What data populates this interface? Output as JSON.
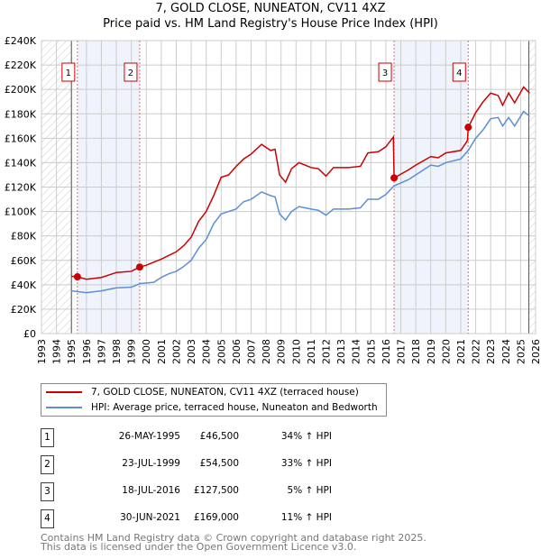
{
  "chart_data": {
    "type": "line",
    "title": "7, GOLD CLOSE, NUNEATON, CV11 4XZ",
    "subtitle": "Price paid vs. HM Land Registry's House Price Index (HPI)",
    "xlim": [
      1993,
      2026
    ],
    "ylim": [
      0,
      240000
    ],
    "x_ticks": [
      "1993",
      "1994",
      "1995",
      "1996",
      "1997",
      "1998",
      "1999",
      "2000",
      "2001",
      "2002",
      "2003",
      "2004",
      "2005",
      "2006",
      "2007",
      "2008",
      "2009",
      "2010",
      "2011",
      "2012",
      "2013",
      "2014",
      "2015",
      "2016",
      "2017",
      "2018",
      "2019",
      "2020",
      "2021",
      "2022",
      "2023",
      "2024",
      "2025",
      "2026"
    ],
    "y_ticks": [
      "£0",
      "£20K",
      "£40K",
      "£60K",
      "£80K",
      "£100K",
      "£120K",
      "£140K",
      "£160K",
      "£180K",
      "£200K",
      "£220K",
      "£240K"
    ],
    "grid": true,
    "series": [
      {
        "name": "7, GOLD CLOSE, NUNEATON, CV11 4XZ (terraced house)",
        "color": "#cc0000",
        "x": [
          1995.0,
          1995.4,
          1996,
          1997,
          1998,
          1999,
          1999.55,
          2000,
          2001,
          2001.5,
          2002,
          2002.5,
          2003,
          2003.5,
          2004,
          2004.5,
          2005,
          2005.5,
          2006,
          2006.5,
          2007,
          2007.7,
          2008.3,
          2008.6,
          2008.9,
          2009.3,
          2009.7,
          2010.2,
          2011,
          2011.5,
          2012,
          2012.5,
          2013.5,
          2014.3,
          2014.8,
          2015.5,
          2016,
          2016.5,
          2016.55,
          2017.5,
          2018,
          2019,
          2019.5,
          2020,
          2021,
          2021.45,
          2021.5,
          2022,
          2022.5,
          2023,
          2023.5,
          2023.8,
          2024.2,
          2024.6,
          2025.2,
          2025.6
        ],
        "y": [
          47000,
          46500,
          44500,
          46000,
          50000,
          51000,
          54500,
          56000,
          61000,
          64000,
          67000,
          72000,
          79000,
          92000,
          100000,
          113000,
          128000,
          130000,
          137000,
          143000,
          147000,
          155000,
          150000,
          151000,
          130000,
          124000,
          135000,
          140000,
          136000,
          135000,
          129000,
          136000,
          136000,
          137000,
          148000,
          149000,
          153000,
          161000,
          127500,
          134000,
          138000,
          145000,
          144000,
          148000,
          150000,
          158000,
          169000,
          181000,
          190000,
          197000,
          195000,
          187000,
          197000,
          189000,
          202000,
          197000
        ]
      },
      {
        "name": "HPI: Average price, terraced house, Nuneaton and Bedworth",
        "color": "#5b8fd6",
        "x": [
          1995.0,
          1996,
          1997,
          1998,
          1999,
          1999.6,
          2000.5,
          2001,
          2001.5,
          2002,
          2002.5,
          2003,
          2003.5,
          2004,
          2004.5,
          2005,
          2005.5,
          2006,
          2006.5,
          2007,
          2007.7,
          2008.3,
          2008.6,
          2008.9,
          2009.3,
          2009.7,
          2010.2,
          2011,
          2011.5,
          2012,
          2012.5,
          2013.5,
          2014.3,
          2014.8,
          2015.5,
          2016,
          2016.55,
          2017.5,
          2018,
          2019,
          2019.5,
          2020,
          2021,
          2021.5,
          2022,
          2022.5,
          2023,
          2023.5,
          2023.8,
          2024.2,
          2024.6,
          2025.2,
          2025.6
        ],
        "y": [
          35000,
          33500,
          35000,
          37500,
          38000,
          41000,
          42000,
          46000,
          49000,
          51000,
          55000,
          60000,
          70000,
          77000,
          90000,
          98000,
          100000,
          102000,
          108000,
          110000,
          116000,
          113000,
          112000,
          98000,
          93000,
          100000,
          104000,
          102000,
          101000,
          97000,
          102000,
          102000,
          103000,
          110000,
          110000,
          114000,
          121000,
          126000,
          130000,
          138000,
          137000,
          140000,
          143000,
          150000,
          160000,
          167000,
          176000,
          177000,
          170000,
          177000,
          170000,
          182000,
          178000
        ]
      }
    ],
    "sales": [
      {
        "label": "1",
        "x": 1995.4,
        "y": 46500,
        "date": "26-MAY-1995",
        "price": "£46,500",
        "hpi": "34% ↑ HPI"
      },
      {
        "label": "2",
        "x": 1999.56,
        "y": 54500,
        "date": "23-JUL-1999",
        "price": "£54,500",
        "hpi": "33% ↑ HPI"
      },
      {
        "label": "3",
        "x": 2016.55,
        "y": 127500,
        "date": "18-JUL-2016",
        "price": "£127,500",
        "hpi": "5% ↑ HPI"
      },
      {
        "label": "4",
        "x": 2021.5,
        "y": 169000,
        "date": "30-JUN-2021",
        "price": "£169,000",
        "hpi": "11% ↑ HPI"
      }
    ],
    "legend_position": "bottom"
  },
  "footer": {
    "line1": "Contains HM Land Registry data © Crown copyright and database right 2025.",
    "line2": "This data is licensed under the Open Government Licence v3.0."
  }
}
